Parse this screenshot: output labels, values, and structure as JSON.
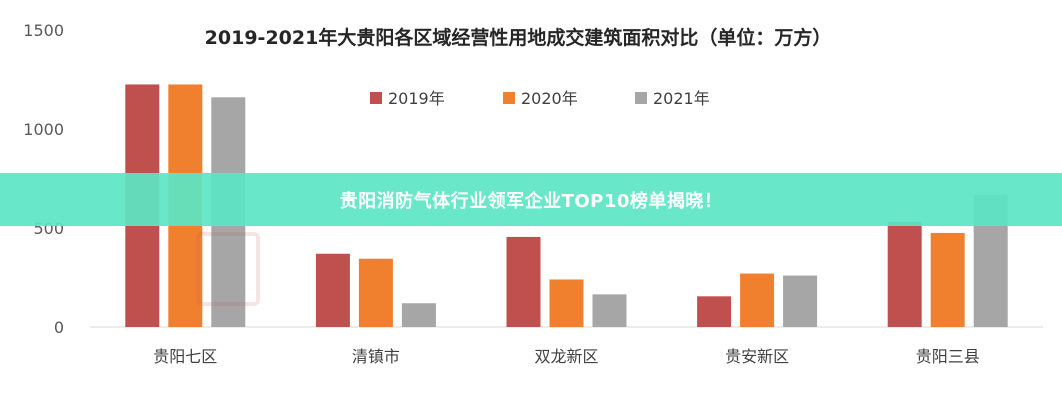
{
  "banner": {
    "text": "贵阳消防气体行业领军企业TOP10榜单揭晓！"
  },
  "colors": {
    "banner": "#5ce6c4",
    "s2019": "#c0504d",
    "s2020": "#f07f2e",
    "s2021": "#a6a6a6"
  },
  "chart_data": {
    "type": "bar",
    "title": "2019-2021年大贵阳各区域经营性用地成交建筑面积对比（单位：万方）",
    "xlabel": "",
    "ylabel": "",
    "ylim": [
      0,
      1500
    ],
    "yticks": [
      0,
      500,
      1000,
      1500
    ],
    "grid": false,
    "legend_position": "top",
    "categories": [
      "贵阳七区",
      "清镇市",
      "双龙新区",
      "贵安新区",
      "贵阳三县"
    ],
    "series": [
      {
        "name": "2019年",
        "color": "#c0504d",
        "values": [
          1225,
          370,
          455,
          155,
          530
        ]
      },
      {
        "name": "2020年",
        "color": "#f07f2e",
        "values": [
          1225,
          345,
          240,
          270,
          475
        ]
      },
      {
        "name": "2021年",
        "color": "#a6a6a6",
        "values": [
          1160,
          120,
          165,
          260,
          670
        ]
      }
    ]
  }
}
